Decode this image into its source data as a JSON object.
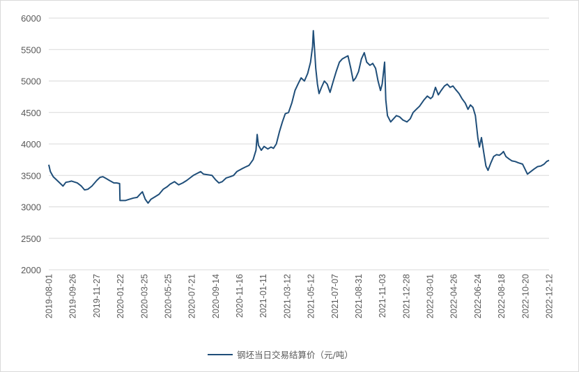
{
  "chart_data": {
    "type": "line",
    "title": "",
    "xlabel": "",
    "ylabel": "",
    "ylim": [
      2000,
      6000
    ],
    "y_ticks": [
      2000,
      2500,
      3000,
      3500,
      4000,
      4500,
      5000,
      5500,
      6000
    ],
    "x_tick_labels": [
      "2019-08-01",
      "2019-09-26",
      "2019-11-27",
      "2020-01-22",
      "2020-03-25",
      "2020-05-25",
      "2020-07-21",
      "2020-09-14",
      "2020-11-16",
      "2021-01-11",
      "2021-03-12",
      "2021-05-12",
      "2021-07-07",
      "2021-08-31",
      "2021-11-03",
      "2021-12-28",
      "2022-03-01",
      "2022-04-26",
      "2022-06-24",
      "2022-08-18",
      "2022-10-20",
      "2022-12-12"
    ],
    "grid": true,
    "legend_position": "bottom",
    "color": "#1f4e79",
    "series": [
      {
        "name": "钢坯当日交易结算价（元/吨）",
        "points": [
          [
            "2019-08-01",
            3670
          ],
          [
            "2019-08-05",
            3560
          ],
          [
            "2019-08-12",
            3480
          ],
          [
            "2019-08-20",
            3430
          ],
          [
            "2019-08-28",
            3380
          ],
          [
            "2019-09-05",
            3330
          ],
          [
            "2019-09-12",
            3390
          ],
          [
            "2019-09-20",
            3400
          ],
          [
            "2019-09-26",
            3410
          ],
          [
            "2019-10-10",
            3380
          ],
          [
            "2019-10-20",
            3330
          ],
          [
            "2019-10-28",
            3270
          ],
          [
            "2019-11-05",
            3280
          ],
          [
            "2019-11-15",
            3330
          ],
          [
            "2019-11-27",
            3420
          ],
          [
            "2019-12-05",
            3470
          ],
          [
            "2019-12-12",
            3480
          ],
          [
            "2019-12-20",
            3450
          ],
          [
            "2019-12-28",
            3420
          ],
          [
            "2020-01-08",
            3380
          ],
          [
            "2020-01-15",
            3380
          ],
          [
            "2020-01-22",
            3370
          ],
          [
            "2020-01-23",
            3100
          ],
          [
            "2020-02-05",
            3100
          ],
          [
            "2020-02-15",
            3120
          ],
          [
            "2020-02-25",
            3140
          ],
          [
            "2020-03-05",
            3150
          ],
          [
            "2020-03-12",
            3200
          ],
          [
            "2020-03-18",
            3240
          ],
          [
            "2020-03-25",
            3120
          ],
          [
            "2020-04-01",
            3060
          ],
          [
            "2020-04-08",
            3120
          ],
          [
            "2020-04-18",
            3160
          ],
          [
            "2020-04-28",
            3200
          ],
          [
            "2020-05-08",
            3280
          ],
          [
            "2020-05-18",
            3320
          ],
          [
            "2020-05-25",
            3360
          ],
          [
            "2020-06-05",
            3400
          ],
          [
            "2020-06-15",
            3350
          ],
          [
            "2020-06-25",
            3380
          ],
          [
            "2020-07-05",
            3420
          ],
          [
            "2020-07-15",
            3470
          ],
          [
            "2020-07-21",
            3500
          ],
          [
            "2020-07-30",
            3530
          ],
          [
            "2020-08-08",
            3560
          ],
          [
            "2020-08-15",
            3520
          ],
          [
            "2020-08-25",
            3510
          ],
          [
            "2020-09-05",
            3500
          ],
          [
            "2020-09-14",
            3430
          ],
          [
            "2020-09-22",
            3380
          ],
          [
            "2020-09-30",
            3400
          ],
          [
            "2020-10-10",
            3460
          ],
          [
            "2020-10-20",
            3480
          ],
          [
            "2020-10-28",
            3500
          ],
          [
            "2020-11-05",
            3560
          ],
          [
            "2020-11-16",
            3600
          ],
          [
            "2020-11-25",
            3630
          ],
          [
            "2020-12-05",
            3660
          ],
          [
            "2020-12-15",
            3750
          ],
          [
            "2020-12-22",
            3900
          ],
          [
            "2020-12-25",
            4150
          ],
          [
            "2020-12-28",
            3980
          ],
          [
            "2021-01-04",
            3900
          ],
          [
            "2021-01-11",
            3960
          ],
          [
            "2021-01-20",
            3920
          ],
          [
            "2021-01-28",
            3950
          ],
          [
            "2021-02-03",
            3930
          ],
          [
            "2021-02-10",
            4000
          ],
          [
            "2021-02-18",
            4200
          ],
          [
            "2021-02-25",
            4350
          ],
          [
            "2021-03-04",
            4480
          ],
          [
            "2021-03-12",
            4500
          ],
          [
            "2021-03-20",
            4650
          ],
          [
            "2021-03-28",
            4850
          ],
          [
            "2021-04-05",
            4960
          ],
          [
            "2021-04-12",
            5050
          ],
          [
            "2021-04-20",
            5000
          ],
          [
            "2021-04-28",
            5120
          ],
          [
            "2021-05-05",
            5300
          ],
          [
            "2021-05-10",
            5550
          ],
          [
            "2021-05-12",
            5800
          ],
          [
            "2021-05-14",
            5600
          ],
          [
            "2021-05-18",
            5200
          ],
          [
            "2021-05-22",
            4950
          ],
          [
            "2021-05-26",
            4800
          ],
          [
            "2021-06-01",
            4900
          ],
          [
            "2021-06-08",
            5000
          ],
          [
            "2021-06-15",
            4950
          ],
          [
            "2021-06-22",
            4820
          ],
          [
            "2021-06-30",
            5000
          ],
          [
            "2021-07-07",
            5150
          ],
          [
            "2021-07-15",
            5300
          ],
          [
            "2021-07-22",
            5350
          ],
          [
            "2021-07-30",
            5380
          ],
          [
            "2021-08-05",
            5400
          ],
          [
            "2021-08-12",
            5200
          ],
          [
            "2021-08-18",
            5000
          ],
          [
            "2021-08-24",
            5050
          ],
          [
            "2021-08-31",
            5150
          ],
          [
            "2021-09-07",
            5350
          ],
          [
            "2021-09-14",
            5450
          ],
          [
            "2021-09-20",
            5300
          ],
          [
            "2021-09-28",
            5250
          ],
          [
            "2021-10-05",
            5280
          ],
          [
            "2021-10-12",
            5200
          ],
          [
            "2021-10-18",
            5000
          ],
          [
            "2021-10-24",
            4850
          ],
          [
            "2021-10-28",
            4950
          ],
          [
            "2021-11-03",
            5300
          ],
          [
            "2021-11-06",
            4700
          ],
          [
            "2021-11-10",
            4450
          ],
          [
            "2021-11-18",
            4350
          ],
          [
            "2021-11-25",
            4400
          ],
          [
            "2021-12-02",
            4450
          ],
          [
            "2021-12-10",
            4430
          ],
          [
            "2021-12-18",
            4380
          ],
          [
            "2021-12-28",
            4350
          ],
          [
            "2022-01-05",
            4400
          ],
          [
            "2022-01-12",
            4500
          ],
          [
            "2022-01-20",
            4550
          ],
          [
            "2022-01-28",
            4600
          ],
          [
            "2022-02-08",
            4700
          ],
          [
            "2022-02-16",
            4760
          ],
          [
            "2022-02-24",
            4720
          ],
          [
            "2022-03-01",
            4750
          ],
          [
            "2022-03-08",
            4900
          ],
          [
            "2022-03-15",
            4780
          ],
          [
            "2022-03-22",
            4850
          ],
          [
            "2022-03-30",
            4920
          ],
          [
            "2022-04-06",
            4950
          ],
          [
            "2022-04-13",
            4900
          ],
          [
            "2022-04-20",
            4920
          ],
          [
            "2022-04-26",
            4870
          ],
          [
            "2022-05-05",
            4800
          ],
          [
            "2022-05-12",
            4720
          ],
          [
            "2022-05-20",
            4650
          ],
          [
            "2022-05-27",
            4550
          ],
          [
            "2022-06-02",
            4620
          ],
          [
            "2022-06-08",
            4580
          ],
          [
            "2022-06-14",
            4450
          ],
          [
            "2022-06-20",
            4100
          ],
          [
            "2022-06-24",
            3950
          ],
          [
            "2022-06-29",
            4100
          ],
          [
            "2022-07-05",
            3850
          ],
          [
            "2022-07-10",
            3650
          ],
          [
            "2022-07-15",
            3580
          ],
          [
            "2022-07-22",
            3700
          ],
          [
            "2022-07-29",
            3800
          ],
          [
            "2022-08-05",
            3830
          ],
          [
            "2022-08-12",
            3820
          ],
          [
            "2022-08-18",
            3850
          ],
          [
            "2022-08-22",
            3880
          ],
          [
            "2022-08-28",
            3800
          ],
          [
            "2022-09-05",
            3760
          ],
          [
            "2022-09-12",
            3730
          ],
          [
            "2022-09-20",
            3720
          ],
          [
            "2022-09-28",
            3700
          ],
          [
            "2022-10-08",
            3680
          ],
          [
            "2022-10-14",
            3600
          ],
          [
            "2022-10-20",
            3520
          ],
          [
            "2022-10-28",
            3560
          ],
          [
            "2022-11-05",
            3600
          ],
          [
            "2022-11-14",
            3640
          ],
          [
            "2022-11-22",
            3650
          ],
          [
            "2022-11-30",
            3680
          ],
          [
            "2022-12-06",
            3720
          ],
          [
            "2022-12-12",
            3740
          ]
        ]
      }
    ]
  }
}
